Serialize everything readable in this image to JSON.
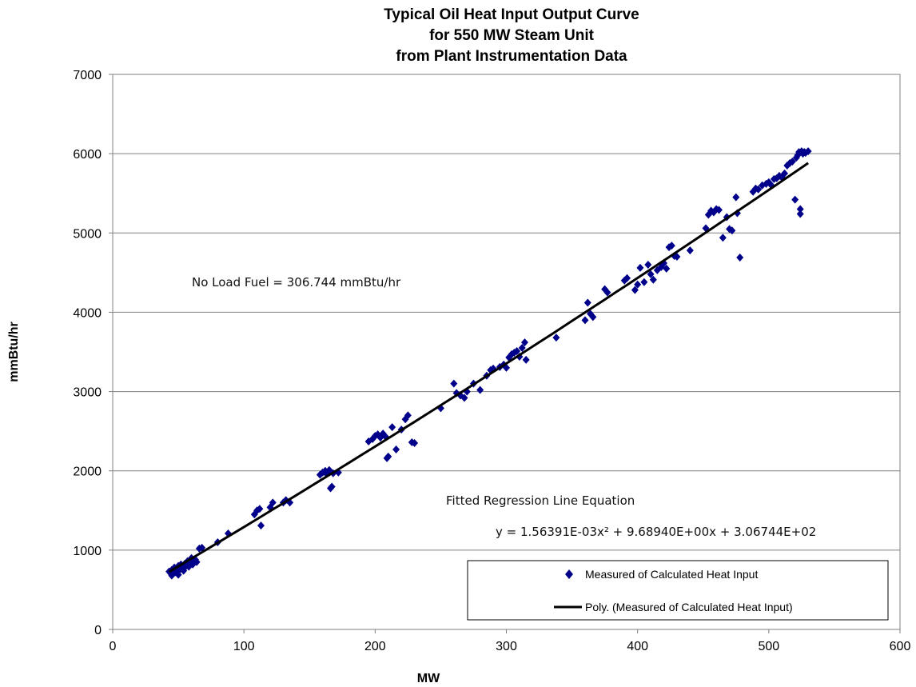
{
  "chart_data": {
    "type": "scatter",
    "title_lines": [
      "Typical Oil Heat Input Output Curve",
      "for 550 MW Steam Unit",
      "from Plant Instrumentation Data"
    ],
    "xlabel": "MW",
    "ylabel": "mmBtu/hr",
    "xlim": [
      0,
      600
    ],
    "ylim": [
      0,
      7000
    ],
    "x_ticks": [
      0,
      100,
      200,
      300,
      400,
      500,
      600
    ],
    "y_ticks": [
      0,
      1000,
      2000,
      3000,
      4000,
      5000,
      6000,
      7000
    ],
    "grid": "horizontal",
    "legend_placement": "bottom-right",
    "annotations": {
      "no_load": "No Load Fuel = 306.744 mmBtu/hr",
      "fit_title": "Fitted Regression Line Equation",
      "equation": "y = 1.56391E-03x² + 9.68940E+00x + 3.06744E+02"
    },
    "fit": {
      "a": 0.00156391,
      "b": 9.6894,
      "c": 306.744,
      "x_range": [
        43,
        530
      ],
      "color": "#000000"
    },
    "series": [
      {
        "name": "Measured of Calculated Heat Input",
        "color": "#00008B",
        "marker": "diamond",
        "points": [
          [
            43,
            730
          ],
          [
            44,
            710
          ],
          [
            45,
            680
          ],
          [
            45,
            750
          ],
          [
            46,
            700
          ],
          [
            47,
            740
          ],
          [
            47,
            780
          ],
          [
            48,
            720
          ],
          [
            49,
            760
          ],
          [
            50,
            800
          ],
          [
            50,
            690
          ],
          [
            51,
            750
          ],
          [
            52,
            820
          ],
          [
            53,
            780
          ],
          [
            54,
            740
          ],
          [
            55,
            830
          ],
          [
            56,
            800
          ],
          [
            57,
            860
          ],
          [
            58,
            790
          ],
          [
            59,
            850
          ],
          [
            60,
            900
          ],
          [
            61,
            820
          ],
          [
            62,
            870
          ],
          [
            63,
            880
          ],
          [
            64,
            850
          ],
          [
            66,
            1020
          ],
          [
            68,
            1030
          ],
          [
            80,
            1100
          ],
          [
            88,
            1210
          ],
          [
            108,
            1450
          ],
          [
            110,
            1500
          ],
          [
            112,
            1520
          ],
          [
            113,
            1310
          ],
          [
            120,
            1540
          ],
          [
            122,
            1600
          ],
          [
            130,
            1600
          ],
          [
            132,
            1630
          ],
          [
            135,
            1600
          ],
          [
            158,
            1950
          ],
          [
            160,
            1980
          ],
          [
            162,
            2000
          ],
          [
            163,
            1960
          ],
          [
            165,
            2010
          ],
          [
            166,
            1780
          ],
          [
            167,
            1800
          ],
          [
            168,
            1970
          ],
          [
            172,
            1980
          ],
          [
            195,
            2370
          ],
          [
            198,
            2400
          ],
          [
            200,
            2440
          ],
          [
            202,
            2460
          ],
          [
            204,
            2420
          ],
          [
            206,
            2470
          ],
          [
            208,
            2430
          ],
          [
            209,
            2160
          ],
          [
            210,
            2180
          ],
          [
            213,
            2550
          ],
          [
            216,
            2270
          ],
          [
            220,
            2520
          ],
          [
            223,
            2650
          ],
          [
            225,
            2700
          ],
          [
            228,
            2360
          ],
          [
            230,
            2350
          ],
          [
            250,
            2790
          ],
          [
            260,
            3100
          ],
          [
            262,
            2980
          ],
          [
            265,
            2950
          ],
          [
            268,
            2920
          ],
          [
            270,
            3000
          ],
          [
            275,
            3100
          ],
          [
            280,
            3020
          ],
          [
            285,
            3200
          ],
          [
            288,
            3270
          ],
          [
            290,
            3290
          ],
          [
            295,
            3310
          ],
          [
            298,
            3340
          ],
          [
            300,
            3300
          ],
          [
            302,
            3430
          ],
          [
            304,
            3470
          ],
          [
            306,
            3490
          ],
          [
            308,
            3510
          ],
          [
            310,
            3440
          ],
          [
            312,
            3550
          ],
          [
            314,
            3620
          ],
          [
            315,
            3400
          ],
          [
            338,
            3680
          ],
          [
            360,
            3900
          ],
          [
            362,
            4120
          ],
          [
            364,
            3980
          ],
          [
            366,
            3940
          ],
          [
            375,
            4290
          ],
          [
            377,
            4250
          ],
          [
            390,
            4400
          ],
          [
            392,
            4430
          ],
          [
            398,
            4280
          ],
          [
            400,
            4350
          ],
          [
            402,
            4560
          ],
          [
            405,
            4380
          ],
          [
            408,
            4600
          ],
          [
            410,
            4480
          ],
          [
            412,
            4410
          ],
          [
            415,
            4530
          ],
          [
            418,
            4570
          ],
          [
            420,
            4620
          ],
          [
            422,
            4550
          ],
          [
            424,
            4820
          ],
          [
            426,
            4840
          ],
          [
            428,
            4710
          ],
          [
            430,
            4700
          ],
          [
            440,
            4780
          ],
          [
            452,
            5060
          ],
          [
            454,
            5230
          ],
          [
            456,
            5280
          ],
          [
            458,
            5260
          ],
          [
            460,
            5300
          ],
          [
            462,
            5290
          ],
          [
            465,
            4940
          ],
          [
            468,
            5200
          ],
          [
            470,
            5050
          ],
          [
            472,
            5030
          ],
          [
            475,
            5450
          ],
          [
            476,
            5250
          ],
          [
            478,
            4690
          ],
          [
            488,
            5520
          ],
          [
            490,
            5560
          ],
          [
            492,
            5550
          ],
          [
            495,
            5600
          ],
          [
            498,
            5620
          ],
          [
            500,
            5640
          ],
          [
            502,
            5600
          ],
          [
            504,
            5680
          ],
          [
            506,
            5690
          ],
          [
            508,
            5720
          ],
          [
            510,
            5700
          ],
          [
            512,
            5750
          ],
          [
            514,
            5850
          ],
          [
            516,
            5880
          ],
          [
            518,
            5900
          ],
          [
            520,
            5420
          ],
          [
            521,
            5950
          ],
          [
            522,
            5980
          ],
          [
            523,
            6020
          ],
          [
            524,
            5300
          ],
          [
            524,
            5240
          ],
          [
            525,
            6030
          ],
          [
            526,
            6000
          ],
          [
            527,
            6020
          ],
          [
            528,
            6010
          ],
          [
            530,
            6030
          ]
        ]
      }
    ],
    "legend": {
      "scatter_label": "Measured of Calculated Heat Input",
      "line_label": "Poly. (Measured of Calculated Heat Input)"
    }
  }
}
